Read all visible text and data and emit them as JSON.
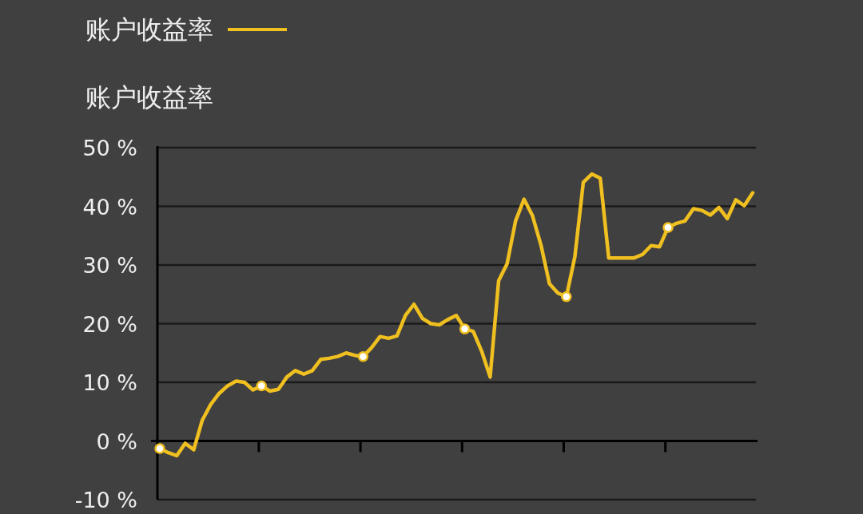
{
  "chart_data": {
    "type": "line",
    "ylabel": "账户收益率",
    "ylim": [
      -10,
      50
    ],
    "yticks": [
      {
        "value": -10,
        "label": "-10 %"
      },
      {
        "value": 0,
        "label": "0 %"
      },
      {
        "value": 10,
        "label": "10 %"
      },
      {
        "value": 20,
        "label": "20 %"
      },
      {
        "value": 30,
        "label": "30 %"
      },
      {
        "value": 40,
        "label": "40 %"
      },
      {
        "value": 50,
        "label": "50 %"
      }
    ],
    "categories": [
      null,
      null,
      null,
      null,
      null,
      null,
      null,
      null,
      null,
      null,
      null,
      null,
      null,
      null,
      null,
      null,
      null,
      null,
      null,
      null,
      null,
      null,
      null,
      null,
      null,
      null,
      null,
      null,
      null,
      null,
      null,
      null,
      null,
      null,
      null,
      null,
      null,
      null,
      null,
      null,
      null,
      null,
      null,
      null,
      null,
      null,
      null,
      null,
      null,
      null,
      null,
      null,
      null,
      null,
      null,
      null,
      null,
      null,
      null,
      null,
      null,
      null,
      null,
      null,
      null,
      null,
      null,
      null,
      null,
      null,
      null
    ],
    "series": [
      {
        "name": "账户收益率",
        "color": "#f0c020",
        "values": [
          -1.3,
          -2.0,
          -2.5,
          -0.4,
          -1.5,
          3.5,
          6.2,
          8.1,
          9.4,
          10.2,
          10.0,
          8.7,
          9.4,
          8.5,
          8.8,
          10.9,
          12.0,
          11.4,
          12.0,
          13.9,
          14.1,
          14.4,
          15.0,
          14.6,
          14.4,
          15.9,
          17.8,
          17.5,
          17.9,
          21.4,
          23.3,
          20.9,
          20.0,
          19.8,
          20.7,
          21.4,
          19.1,
          18.7,
          15.3,
          10.9,
          27.3,
          30.2,
          37.5,
          41.2,
          38.4,
          33.4,
          26.8,
          25.2,
          24.6,
          31.4,
          44.1,
          45.5,
          44.8,
          31.2,
          31.2,
          31.2,
          31.2,
          31.8,
          33.3,
          33.1,
          36.4,
          37.1,
          37.5,
          39.6,
          39.3,
          38.5,
          39.8,
          37.9,
          41.1,
          40.1,
          42.3
        ]
      },
      {
        "type": "scatter",
        "marker": "circle",
        "color": "#ffffff",
        "values": [
          -1.3,
          null,
          null,
          null,
          null,
          null,
          null,
          null,
          null,
          null,
          null,
          null,
          9.4,
          null,
          null,
          null,
          null,
          null,
          null,
          null,
          null,
          null,
          null,
          null,
          14.4,
          null,
          null,
          null,
          null,
          null,
          null,
          null,
          null,
          null,
          null,
          null,
          19.1,
          null,
          null,
          null,
          null,
          null,
          null,
          null,
          null,
          null,
          null,
          null,
          24.6,
          null,
          null,
          null,
          null,
          null,
          null,
          null,
          null,
          null,
          null,
          null,
          36.4,
          null,
          null,
          null,
          null,
          null,
          null,
          null,
          null,
          null,
          null
        ]
      }
    ],
    "grid": "y",
    "legend": "top left",
    "line_style": "solid"
  }
}
